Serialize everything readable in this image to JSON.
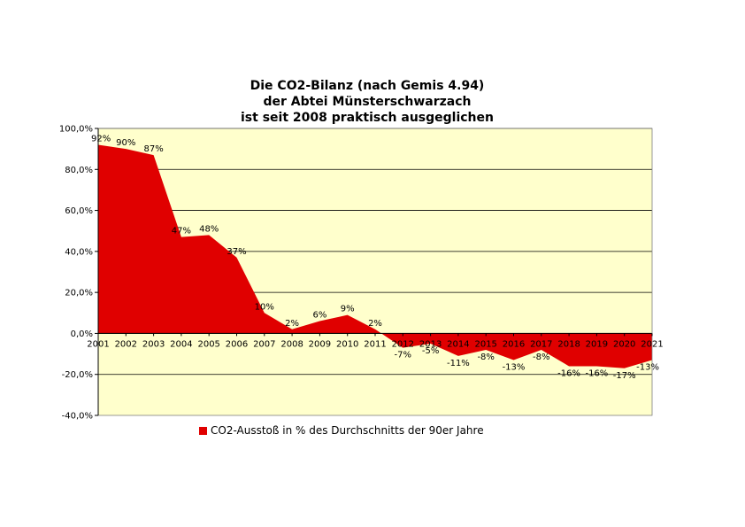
{
  "chart_data": {
    "type": "area",
    "title_lines": [
      "Die CO2-Bilanz (nach Gemis 4.94)",
      "der Abtei Münsterschwarzach",
      "ist seit 2008 praktisch ausgeglichen"
    ],
    "xlabel": "",
    "ylabel": "",
    "categories": [
      "2001",
      "2002",
      "2003",
      "2004",
      "2005",
      "2006",
      "2007",
      "2008",
      "2009",
      "2010",
      "2011",
      "2012",
      "2013",
      "2014",
      "2015",
      "2016",
      "2017",
      "2018",
      "2019",
      "2020",
      "2021"
    ],
    "series": [
      {
        "name": "CO2-Ausstoß in % des Durchschnitts der 90er Jahre",
        "values": [
          92,
          90,
          87,
          47,
          48,
          37,
          10,
          2,
          6,
          9,
          2,
          -7,
          -5,
          -11,
          -8,
          -13,
          -8,
          -16,
          -16,
          -17,
          -13
        ],
        "data_labels": [
          "92%",
          "90%",
          "87%",
          "47%",
          "48%",
          "37%",
          "10%",
          "2%",
          "6%",
          "9%",
          "2%",
          "-7%",
          "-5%",
          "-11%",
          "-8%",
          "-13%",
          "-8%",
          "-16%",
          "-16%",
          "-17%",
          "-13%"
        ],
        "color": "#E00000"
      }
    ],
    "ylim": [
      -40,
      100
    ],
    "yticks": [
      -40,
      -20,
      0,
      20,
      40,
      60,
      80,
      100
    ],
    "ytick_labels": [
      "-40,0%",
      "-20,0%",
      "0,0%",
      "20,0%",
      "40,0%",
      "60,0%",
      "80,0%",
      "100,0%"
    ],
    "grid": true,
    "legend_position": "bottom",
    "plot_background": "#FFFFCC",
    "gridline_color": "#000000"
  }
}
